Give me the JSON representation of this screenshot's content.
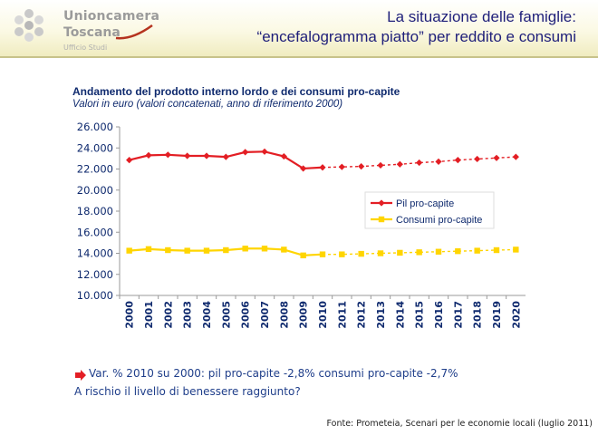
{
  "header": {
    "logo_line1": "Unioncamera",
    "logo_line2": "Toscana",
    "logo_line3": "Ufficio Studi",
    "title_line1": "La situazione delle famiglie:",
    "title_line2": "“encefalogramma piatto” per reddito e consumi"
  },
  "colors": {
    "accent": "#e31e24",
    "series1": "#e31e24",
    "series2": "#ffd500",
    "title": "#1f1f7a",
    "text": "#1f3e8a"
  },
  "chart_data": {
    "type": "line",
    "title": "Andamento del prodotto interno lordo e dei consumi pro-capite",
    "subtitle": "Valori in euro (valori concatenati, anno di riferimento 2000)",
    "xlabel": "",
    "ylabel": "",
    "ylim": [
      10000,
      26000
    ],
    "y_ticks": [
      10000,
      12000,
      14000,
      16000,
      18000,
      20000,
      22000,
      24000,
      26000
    ],
    "y_tick_labels": [
      "10.000",
      "12.000",
      "14.000",
      "16.000",
      "18.000",
      "20.000",
      "22.000",
      "24.000",
      "26.000"
    ],
    "categories": [
      "2000",
      "2001",
      "2002",
      "2003",
      "2004",
      "2005",
      "2006",
      "2007",
      "2008",
      "2009",
      "2010",
      "2011",
      "2012",
      "2013",
      "2014",
      "2015",
      "2016",
      "2017",
      "2018",
      "2019",
      "2020"
    ],
    "forecast_from_index": 10,
    "legend_position": "center-right",
    "series": [
      {
        "name": "Pil pro-capite",
        "color": "#e31e24",
        "marker": "diamond",
        "values": [
          22850,
          23300,
          23350,
          23250,
          23250,
          23150,
          23600,
          23650,
          23200,
          22050,
          22150,
          22200,
          22250,
          22350,
          22450,
          22600,
          22700,
          22850,
          22950,
          23050,
          23150
        ]
      },
      {
        "name": "Consumi pro-capite",
        "color": "#ffd500",
        "marker": "square",
        "values": [
          14250,
          14400,
          14300,
          14250,
          14250,
          14300,
          14450,
          14450,
          14350,
          13800,
          13900,
          13900,
          13950,
          14000,
          14050,
          14100,
          14150,
          14200,
          14250,
          14300,
          14350
        ]
      }
    ]
  },
  "notes": {
    "line1": "Var. % 2010 su 2000: pil pro-capite -2,8% consumi pro-capite -2,7%",
    "line2": "A rischio il livello di benessere raggiunto?"
  },
  "source": "Fonte: Prometeia, Scenari per le economie locali (luglio 2011)"
}
